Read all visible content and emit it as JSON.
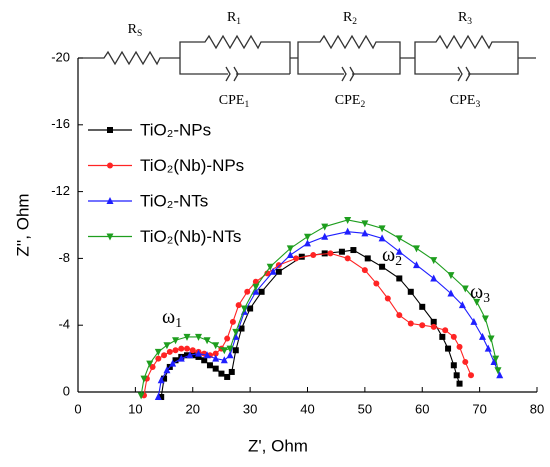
{
  "chart_data": {
    "type": "scatter",
    "x_label": "Z', Ohm",
    "y_label": "Z'', Ohm",
    "xlim": [
      0,
      80
    ],
    "xticks": [
      0,
      10,
      20,
      30,
      40,
      50,
      60,
      70,
      80
    ],
    "ylim": [
      0,
      -20
    ],
    "yticks": [
      0,
      -4,
      -8,
      -12,
      -16,
      -20
    ],
    "legend": "upper left",
    "series": [
      {
        "name": "TiO₂-NPs",
        "color": "#000000",
        "marker": "square",
        "x": [
          14.5,
          15,
          16,
          17,
          18,
          19,
          20,
          21,
          22,
          23,
          24,
          25,
          26,
          26.8,
          27.5,
          28.5,
          30,
          32,
          35,
          39,
          43,
          46,
          48,
          50.5,
          53,
          56,
          58,
          60,
          62,
          63.5,
          64.5,
          65.5,
          66,
          66.5
        ],
        "values": [
          0.3,
          -0.8,
          -1.5,
          -1.9,
          -2.1,
          -2.2,
          -2.2,
          -2.1,
          -1.9,
          -1.6,
          -1.4,
          -1.1,
          -0.9,
          -1.2,
          -2.5,
          -3.8,
          -5,
          -6,
          -7.2,
          -8.1,
          -8.3,
          -8.4,
          -8.5,
          -8,
          -7.5,
          -6.8,
          -6,
          -5.1,
          -4.2,
          -3.3,
          -2.6,
          -1.6,
          -1,
          -0.5
        ]
      },
      {
        "name": "TiO₂(Nb)-NPs",
        "color": "#ff2424",
        "marker": "circle",
        "x": [
          11.5,
          12,
          13,
          14,
          15,
          16,
          17,
          18,
          19,
          20,
          21,
          22,
          23,
          24,
          25,
          26,
          27,
          28,
          29.5,
          31,
          33,
          35,
          38,
          41,
          44,
          47,
          50,
          52,
          54,
          56,
          58,
          60,
          62,
          64,
          65.5,
          66.5,
          67.5,
          68.5
        ],
        "values": [
          0.2,
          -0.8,
          -1.5,
          -2,
          -2.2,
          -2.4,
          -2.5,
          -2.6,
          -2.6,
          -2.5,
          -2.4,
          -2.3,
          -2.2,
          -2.3,
          -2.6,
          -3.2,
          -4.2,
          -5.2,
          -6,
          -6.6,
          -7.1,
          -7.6,
          -8,
          -8.2,
          -8.3,
          -8,
          -7.3,
          -6.5,
          -5.6,
          -4.6,
          -4.1,
          -4,
          -3.9,
          -3.7,
          -3.3,
          -2.7,
          -1.8,
          -1
        ]
      },
      {
        "name": "TiO₂-NTs",
        "color": "#1f1fff",
        "marker": "triangle-up",
        "x": [
          14,
          14.5,
          15.5,
          16.5,
          18,
          19.5,
          21,
          22.5,
          24,
          25.5,
          26.5,
          27.5,
          29,
          31,
          34,
          37,
          40,
          43,
          47,
          50,
          53,
          56,
          59,
          62,
          65,
          67,
          69,
          70.5,
          71.5,
          72.5,
          73.5
        ],
        "values": [
          0.3,
          -0.7,
          -1.3,
          -1.7,
          -2,
          -2.2,
          -2.3,
          -2.2,
          -2,
          -1.9,
          -2.2,
          -3.3,
          -4.8,
          -6,
          -7.2,
          -8.2,
          -8.9,
          -9.3,
          -9.6,
          -9.5,
          -9.2,
          -8.4,
          -7.6,
          -6.8,
          -5.9,
          -5.2,
          -4.2,
          -3.3,
          -2.6,
          -1.8,
          -1
        ]
      },
      {
        "name": "TiO₂(Nb)-NTs",
        "color": "#1e9e1e",
        "marker": "triangle-down",
        "x": [
          11,
          11.5,
          12.5,
          14,
          15.5,
          17,
          19,
          21,
          22.5,
          24,
          25.5,
          26.5,
          27.5,
          29,
          31,
          33.5,
          37,
          40,
          43,
          47,
          50,
          53,
          56,
          59,
          62,
          65,
          67.5,
          69.5,
          71,
          72,
          72.8,
          73.2
        ],
        "values": [
          0.2,
          -0.8,
          -1.7,
          -2.4,
          -2.8,
          -3.1,
          -3.3,
          -3.3,
          -3.1,
          -2.8,
          -2.5,
          -2.6,
          -3.6,
          -5,
          -6.3,
          -7.5,
          -8.6,
          -9.3,
          -9.9,
          -10.3,
          -10.1,
          -9.8,
          -9.2,
          -8.6,
          -7.9,
          -7,
          -6.2,
          -5.4,
          -4.4,
          -3.2,
          -2,
          -1.3
        ]
      }
    ],
    "annotations": [
      {
        "text": "ω",
        "sub": "1"
      },
      {
        "text": "ω",
        "sub": "2"
      },
      {
        "text": "ω",
        "sub": "3"
      }
    ],
    "circuit": [
      {
        "text": "R",
        "sub": "S"
      },
      {
        "text": "R",
        "sub": "1"
      },
      {
        "text": "CPE",
        "sub": "1"
      },
      {
        "text": "R",
        "sub": "2"
      },
      {
        "text": "CPE",
        "sub": "2"
      },
      {
        "text": "R",
        "sub": "3"
      },
      {
        "text": "CPE",
        "sub": "3"
      }
    ]
  }
}
